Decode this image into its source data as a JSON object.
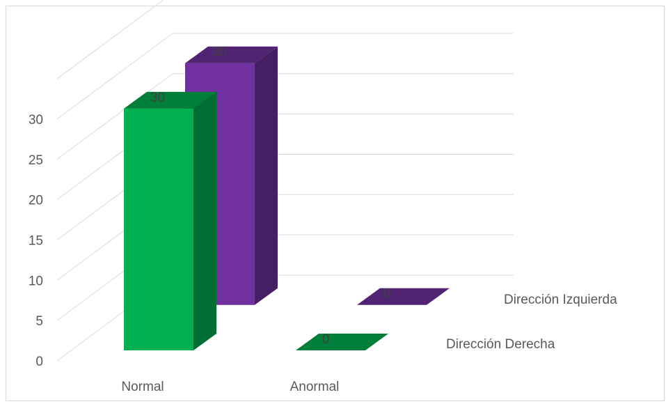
{
  "chart_data": {
    "type": "bar",
    "subtype": "3d-column",
    "categories": [
      "Normal",
      "Anormal"
    ],
    "series": [
      {
        "name": "Dirección Derecha",
        "values": [
          30,
          0
        ],
        "color": "#00b050"
      },
      {
        "name": "Dirección Izquierda",
        "values": [
          30,
          0
        ],
        "color": "#7030a0"
      }
    ],
    "data_labels": true,
    "ylim": [
      0,
      35
    ],
    "yticks": [
      0,
      5,
      10,
      15,
      20,
      25,
      30
    ],
    "grid": true,
    "title": "",
    "xlabel": "",
    "ylabel": ""
  }
}
